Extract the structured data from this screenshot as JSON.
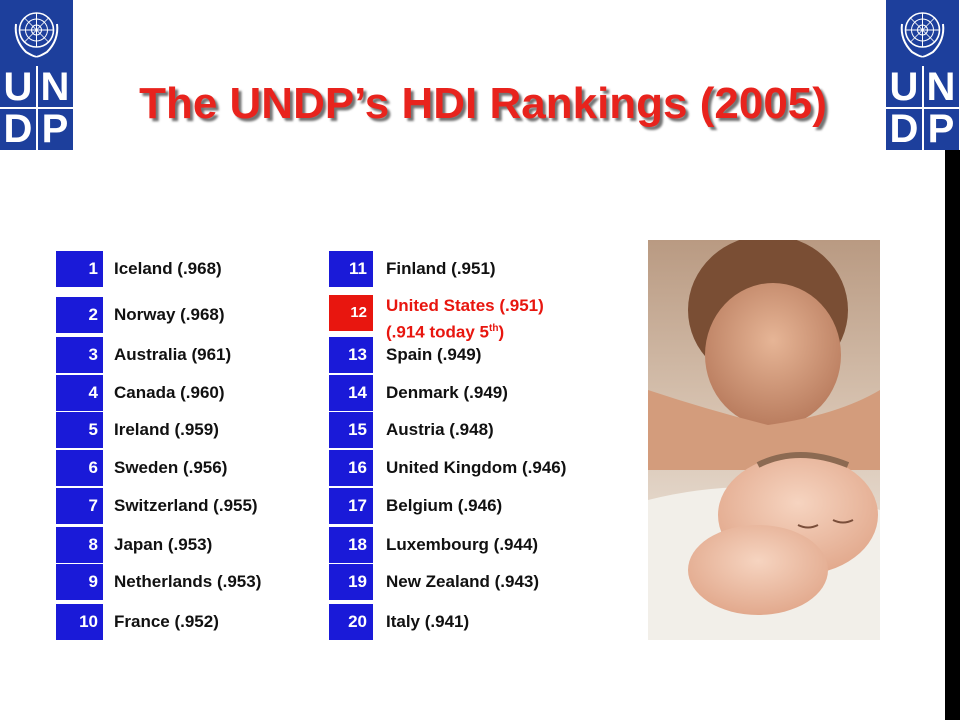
{
  "title": "The UNDP’s HDI Rankings (2005)",
  "logo": {
    "letters": [
      "U",
      "N",
      "D",
      "P"
    ]
  },
  "colors": {
    "logo_blue": "#1d3f9c",
    "rank_blue": "#1a1ad8",
    "highlight_red": "#e8160f",
    "title_red": "#e8231d"
  },
  "rankings_left": [
    {
      "rank": "1",
      "country": "Iceland (.968)"
    },
    {
      "rank": "2",
      "country": "Norway (.968)"
    },
    {
      "rank": "3",
      "country": "Australia (961)"
    },
    {
      "rank": "4",
      "country": "Canada (.960)"
    },
    {
      "rank": "5",
      "country": "Ireland (.959)"
    },
    {
      "rank": "6",
      "country": "Sweden (.956)"
    },
    {
      "rank": "7",
      "country": "Switzerland (.955)"
    },
    {
      "rank": "8",
      "country": "Japan (.953)"
    },
    {
      "rank": "9",
      "country": "Netherlands (.953)"
    },
    {
      "rank": "10",
      "country": "France (.952)"
    }
  ],
  "rankings_right": [
    {
      "rank": "11",
      "country": "Finland (.951)"
    },
    {
      "rank": "12",
      "country": "United States (.951)",
      "note": "(.914 today 5",
      "note_sup": "th",
      "note_end": ")"
    },
    {
      "rank": "13",
      "country": "Spain (.949)"
    },
    {
      "rank": "14",
      "country": "Denmark (.949)"
    },
    {
      "rank": "15",
      "country": "Austria  (.948)"
    },
    {
      "rank": "16",
      "country": "United Kingdom (.946)"
    },
    {
      "rank": "17",
      "country": "Belgium (.946)"
    },
    {
      "rank": "18",
      "country": "Luxembourg (.944)"
    },
    {
      "rank": "19",
      "country": "New Zealand (.943)"
    },
    {
      "rank": "20",
      "country": "Italy (.941)"
    }
  ]
}
